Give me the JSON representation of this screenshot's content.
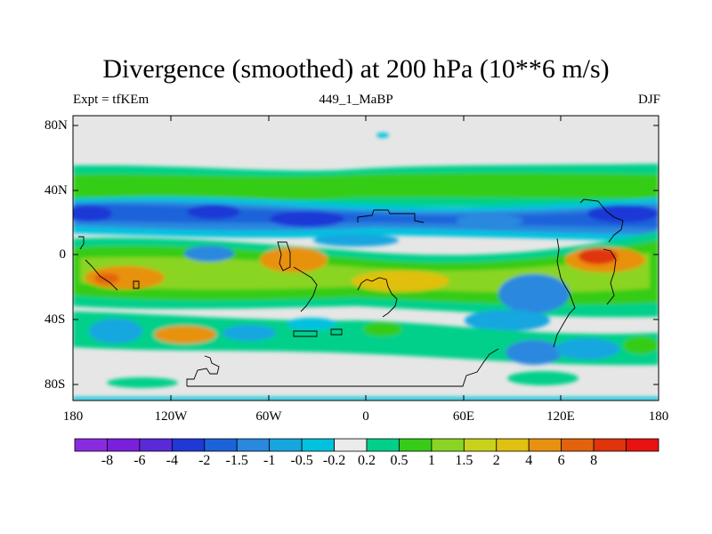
{
  "map": {
    "title": "Divergence (smoothed) at 200 hPa (10**6 m/s)",
    "left_label": "Expt = tfKEm",
    "center_label": "449_1_MaBP",
    "right_label": "DJF",
    "lat_labels": [
      "80N",
      "40N",
      "0",
      "40S",
      "80S"
    ],
    "lon_labels": [
      "180",
      "120W",
      "60W",
      "0",
      "60E",
      "120E",
      "180"
    ],
    "background_color": "#e6e6e6",
    "colorbar": {
      "colors": [
        "#8a2be2",
        "#7a1fdc",
        "#5a2ad8",
        "#1f38d6",
        "#1c63da",
        "#2a88de",
        "#16a6e0",
        "#00c2de",
        "#ebebeb",
        "#00d08a",
        "#36cc18",
        "#8ad424",
        "#c8d21a",
        "#e0c011",
        "#e89110",
        "#e3630c",
        "#e0340c",
        "#e81212"
      ],
      "tick_labels": [
        "-8",
        "-6",
        "-4",
        "-2",
        "-1.5",
        "-1",
        "-0.5",
        "-0.2",
        "0.2",
        "0.5",
        "1",
        "1.5",
        "2",
        "4",
        "6",
        "8"
      ]
    }
  }
}
